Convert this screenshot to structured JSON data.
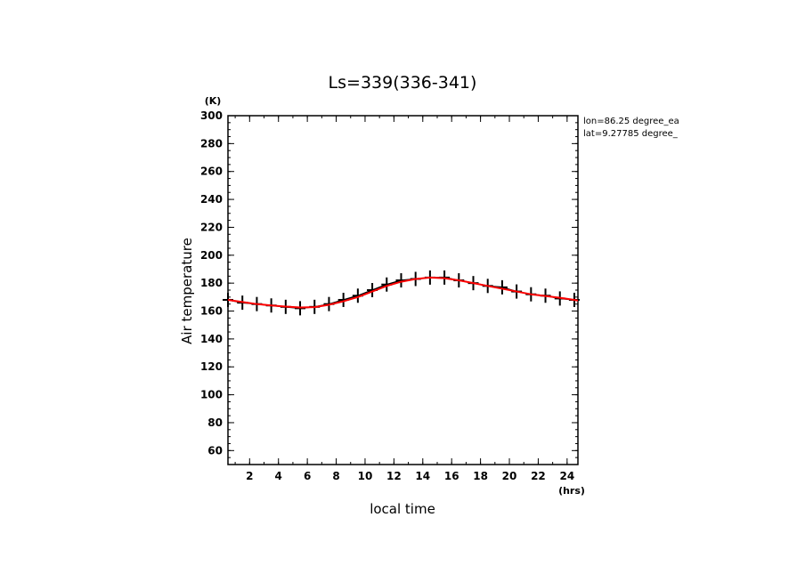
{
  "chart_data": {
    "type": "line",
    "title": "Ls=339(336-341)",
    "xlabel": "local time",
    "ylabel": "Air temperature",
    "xunit": "(hrs)",
    "yunit": "(K)",
    "xlim": [
      0.5,
      24.75
    ],
    "ylim": [
      50,
      300
    ],
    "xticks": [
      2,
      4,
      6,
      8,
      10,
      12,
      14,
      16,
      18,
      20,
      22,
      24
    ],
    "yticks": [
      60,
      80,
      100,
      120,
      140,
      160,
      180,
      200,
      220,
      240,
      260,
      280,
      300
    ],
    "annotations": [
      "lon=86.25 degree_ea",
      "lat=9.27785 degree_"
    ],
    "grid": false,
    "series": [
      {
        "color": "#000000",
        "marker": "plus",
        "x": [
          0.5,
          1.5,
          2.5,
          3.5,
          4.5,
          5.5,
          6.5,
          7.5,
          8.5,
          9.5,
          10.5,
          11.5,
          12.5,
          13.5,
          14.5,
          15.5,
          16.5,
          17.5,
          18.5,
          19.5,
          20.5,
          21.5,
          22.5,
          23.5,
          24.5
        ],
        "y": [
          168,
          166,
          165,
          164,
          163,
          162,
          163,
          165,
          168,
          171,
          175,
          179,
          182,
          183,
          184,
          184,
          182,
          180,
          178,
          177,
          174,
          172,
          171,
          169,
          168
        ]
      },
      {
        "color": "#ff0000",
        "marker": "none",
        "x": [
          0.5,
          1.5,
          2.5,
          3.5,
          4.5,
          5.5,
          6.5,
          7.5,
          8.5,
          9.5,
          10.5,
          11.5,
          12.5,
          13.5,
          14.5,
          15.5,
          16.5,
          17.5,
          18.5,
          19.5,
          20.5,
          21.5,
          22.5,
          23.5,
          24.5,
          24.75
        ],
        "y": [
          168,
          166.5,
          165,
          164,
          163.2,
          162.6,
          162.8,
          164.5,
          167,
          170,
          174,
          178,
          181,
          183,
          184,
          183.5,
          182,
          180,
          178,
          176,
          174,
          172,
          170.8,
          169.5,
          168,
          167.5
        ]
      }
    ]
  }
}
